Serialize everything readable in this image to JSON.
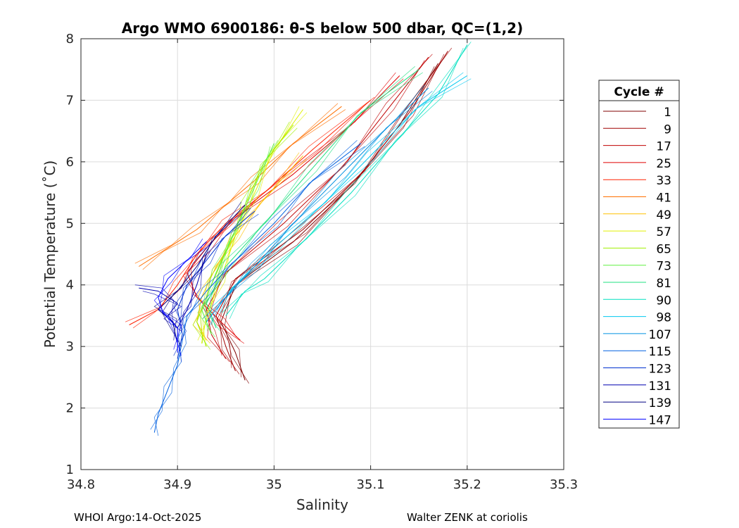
{
  "footer": {
    "left": "WHOI Argo:14-Oct-2025",
    "right": "Walter ZENK at coriolis"
  },
  "colors": {
    "background": "#ffffff",
    "grid": "#dcdcdc",
    "axis": "#262626"
  },
  "chart_data": {
    "type": "line",
    "title": "Argo WMO 6900186: θ-S below 500 dbar,  QC=(1,2)",
    "xlabel": "Salinity",
    "ylabel": "Potential Temperature (˚C)",
    "xlim": [
      34.8,
      35.3
    ],
    "ylim": [
      1,
      8
    ],
    "xticks": [
      34.8,
      34.9,
      35,
      35.1,
      35.2,
      35.3
    ],
    "xtick_labels": [
      "34.8",
      "34.9",
      "35",
      "35.1",
      "35.2",
      "35.3"
    ],
    "yticks": [
      1,
      2,
      3,
      4,
      5,
      6,
      7,
      8
    ],
    "ytick_labels": [
      "1",
      "2",
      "3",
      "4",
      "5",
      "6",
      "7",
      "8"
    ],
    "grid": true,
    "legend": {
      "title": "Cycle #",
      "placement": "right-outside",
      "entries": [
        "1",
        "9",
        "17",
        "25",
        "33",
        "41",
        "49",
        "57",
        "65",
        "73",
        "81",
        "90",
        "98",
        "107",
        "115",
        "123",
        "131",
        "139",
        "147"
      ]
    },
    "series": [
      {
        "name": "1",
        "color": "#800000",
        "points": [
          [
            34.97,
            2.45
          ],
          [
            34.96,
            2.9
          ],
          [
            34.945,
            3.4
          ],
          [
            34.96,
            4.0
          ],
          [
            35.02,
            4.7
          ],
          [
            35.08,
            5.6
          ],
          [
            35.13,
            6.6
          ],
          [
            35.17,
            7.6
          ]
        ]
      },
      {
        "name": "9",
        "color": "#a00000",
        "points": [
          [
            34.96,
            2.6
          ],
          [
            34.95,
            3.0
          ],
          [
            34.94,
            3.5
          ],
          [
            34.96,
            4.1
          ],
          [
            35.03,
            4.9
          ],
          [
            35.09,
            5.8
          ],
          [
            35.14,
            6.8
          ],
          [
            35.18,
            7.8
          ]
        ]
      },
      {
        "name": "17",
        "color": "#c00000",
        "points": [
          [
            34.95,
            2.8
          ],
          [
            34.935,
            3.2
          ],
          [
            34.93,
            3.6
          ],
          [
            34.95,
            4.2
          ],
          [
            35.01,
            5.0
          ],
          [
            35.07,
            5.9
          ],
          [
            35.12,
            6.9
          ],
          [
            35.16,
            7.7
          ]
        ]
      },
      {
        "name": "25",
        "color": "#e00000",
        "points": [
          [
            34.965,
            3.1
          ],
          [
            34.945,
            3.4
          ],
          [
            34.92,
            3.8
          ],
          [
            34.91,
            4.2
          ],
          [
            34.93,
            4.6
          ],
          [
            34.96,
            5.1
          ],
          [
            35.02,
            5.8
          ],
          [
            35.08,
            6.6
          ],
          [
            35.13,
            7.4
          ]
        ]
      },
      {
        "name": "33",
        "color": "#ff2000",
        "points": [
          [
            34.85,
            3.35
          ],
          [
            34.88,
            3.6
          ],
          [
            34.9,
            4.0
          ],
          [
            34.92,
            4.5
          ],
          [
            34.95,
            5.0
          ],
          [
            34.99,
            5.5
          ],
          [
            35.04,
            6.2
          ],
          [
            35.1,
            7.0
          ]
        ]
      },
      {
        "name": "41",
        "color": "#ff7000",
        "points": [
          [
            34.86,
            4.3
          ],
          [
            34.89,
            4.6
          ],
          [
            34.92,
            4.9
          ],
          [
            34.95,
            5.3
          ],
          [
            34.98,
            5.7
          ],
          [
            35.02,
            6.3
          ],
          [
            35.07,
            6.9
          ]
        ]
      },
      {
        "name": "49",
        "color": "#ffc000",
        "points": [
          [
            34.93,
            3.1
          ],
          [
            34.92,
            3.4
          ],
          [
            34.925,
            3.8
          ],
          [
            34.94,
            4.3
          ],
          [
            34.96,
            4.8
          ],
          [
            34.99,
            5.4
          ],
          [
            35.03,
            6.1
          ]
        ]
      },
      {
        "name": "57",
        "color": "#e0f000",
        "points": [
          [
            34.925,
            3.05
          ],
          [
            34.93,
            3.5
          ],
          [
            34.945,
            4.1
          ],
          [
            34.96,
            4.8
          ],
          [
            34.98,
            5.5
          ],
          [
            35.0,
            6.2
          ],
          [
            35.03,
            6.85
          ]
        ]
      },
      {
        "name": "65",
        "color": "#a0f000",
        "points": [
          [
            34.93,
            3.0
          ],
          [
            34.92,
            3.4
          ],
          [
            34.935,
            4.0
          ],
          [
            34.955,
            4.7
          ],
          [
            34.97,
            5.3
          ],
          [
            34.99,
            6.0
          ],
          [
            35.02,
            6.6
          ]
        ]
      },
      {
        "name": "73",
        "color": "#60f040",
        "points": [
          [
            34.935,
            3.2
          ],
          [
            34.925,
            3.6
          ],
          [
            34.94,
            4.2
          ],
          [
            34.96,
            4.9
          ],
          [
            34.98,
            5.6
          ],
          [
            35.0,
            6.3
          ]
        ]
      },
      {
        "name": "81",
        "color": "#20e080",
        "points": [
          [
            34.94,
            3.3
          ],
          [
            34.93,
            3.7
          ],
          [
            34.95,
            4.3
          ],
          [
            34.99,
            5.0
          ],
          [
            35.04,
            5.9
          ],
          [
            35.09,
            6.8
          ],
          [
            35.15,
            7.5
          ]
        ]
      },
      {
        "name": "90",
        "color": "#00e0c0",
        "points": [
          [
            34.95,
            3.5
          ],
          [
            34.97,
            3.9
          ],
          [
            34.99,
            4.1
          ],
          [
            35.03,
            4.7
          ],
          [
            35.08,
            5.5
          ],
          [
            35.13,
            6.4
          ],
          [
            35.17,
            7.1
          ],
          [
            35.2,
            7.9
          ]
        ]
      },
      {
        "name": "98",
        "color": "#00c8f0",
        "points": [
          [
            34.94,
            3.6
          ],
          [
            34.96,
            4.0
          ],
          [
            35.0,
            4.6
          ],
          [
            35.05,
            5.3
          ],
          [
            35.1,
            6.1
          ],
          [
            35.15,
            6.9
          ],
          [
            35.2,
            7.4
          ]
        ]
      },
      {
        "name": "107",
        "color": "#0090e0",
        "points": [
          [
            34.93,
            3.4
          ],
          [
            34.95,
            3.8
          ],
          [
            34.98,
            4.3
          ],
          [
            35.02,
            5.0
          ],
          [
            35.07,
            5.8
          ],
          [
            35.12,
            6.6
          ],
          [
            35.16,
            7.2
          ]
        ]
      },
      {
        "name": "115",
        "color": "#0060e0",
        "points": [
          [
            34.876,
            1.6
          ],
          [
            34.88,
            1.9
          ],
          [
            34.89,
            2.3
          ],
          [
            34.9,
            2.7
          ],
          [
            34.905,
            3.1
          ],
          [
            34.91,
            3.5
          ],
          [
            34.93,
            3.9
          ],
          [
            34.96,
            4.4
          ],
          [
            35.0,
            5.0
          ],
          [
            35.04,
            5.7
          ],
          [
            35.09,
            6.3
          ]
        ]
      },
      {
        "name": "123",
        "color": "#0030d0",
        "points": [
          [
            34.9,
            2.8
          ],
          [
            34.905,
            3.2
          ],
          [
            34.9,
            3.6
          ],
          [
            34.91,
            4.0
          ],
          [
            34.93,
            4.4
          ],
          [
            34.95,
            4.8
          ],
          [
            34.98,
            5.2
          ]
        ]
      },
      {
        "name": "131",
        "color": "#0000b0",
        "points": [
          [
            34.86,
            3.95
          ],
          [
            34.88,
            3.9
          ],
          [
            34.9,
            3.7
          ],
          [
            34.89,
            3.5
          ],
          [
            34.9,
            3.3
          ],
          [
            34.91,
            3.6
          ],
          [
            34.92,
            4.0
          ],
          [
            34.93,
            4.5
          ]
        ]
      },
      {
        "name": "139",
        "color": "#000080",
        "points": [
          [
            34.9,
            3.05
          ],
          [
            34.895,
            3.4
          ],
          [
            34.88,
            3.6
          ],
          [
            34.9,
            3.9
          ],
          [
            34.92,
            4.3
          ],
          [
            34.94,
            4.8
          ],
          [
            34.97,
            5.3
          ]
        ]
      },
      {
        "name": "147",
        "color": "#0000ff",
        "points": [
          [
            34.9,
            2.9
          ],
          [
            34.9,
            3.3
          ],
          [
            34.885,
            3.55
          ],
          [
            34.88,
            3.8
          ],
          [
            34.89,
            4.1
          ],
          [
            34.91,
            4.4
          ],
          [
            34.93,
            4.7
          ]
        ]
      }
    ]
  }
}
